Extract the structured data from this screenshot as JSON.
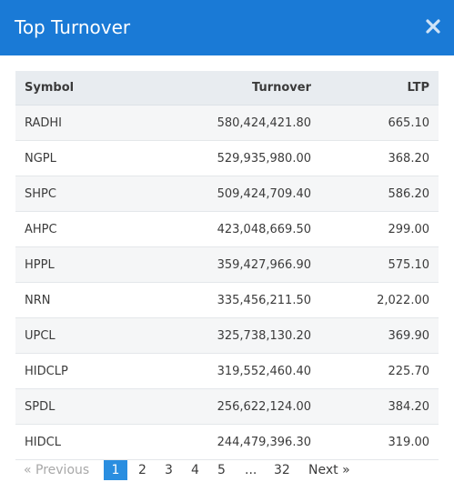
{
  "modal": {
    "title": "Top Turnover",
    "close_icon": "close-icon"
  },
  "table": {
    "headers": {
      "symbol": "Symbol",
      "turnover": "Turnover",
      "ltp": "LTP"
    },
    "rows": [
      {
        "symbol": "RADHI",
        "turnover": "580,424,421.80",
        "ltp": "665.10"
      },
      {
        "symbol": "NGPL",
        "turnover": "529,935,980.00",
        "ltp": "368.20"
      },
      {
        "symbol": "SHPC",
        "turnover": "509,424,709.40",
        "ltp": "586.20"
      },
      {
        "symbol": "AHPC",
        "turnover": "423,048,669.50",
        "ltp": "299.00"
      },
      {
        "symbol": "HPPL",
        "turnover": "359,427,966.90",
        "ltp": "575.10"
      },
      {
        "symbol": "NRN",
        "turnover": "335,456,211.50",
        "ltp": "2,022.00"
      },
      {
        "symbol": "UPCL",
        "turnover": "325,738,130.20",
        "ltp": "369.90"
      },
      {
        "symbol": "HIDCLP",
        "turnover": "319,552,460.40",
        "ltp": "225.70"
      },
      {
        "symbol": "SPDL",
        "turnover": "256,622,124.00",
        "ltp": "384.20"
      },
      {
        "symbol": "HIDCL",
        "turnover": "244,479,396.30",
        "ltp": "319.00"
      }
    ]
  },
  "pagination": {
    "previous": "«  Previous",
    "pages": [
      "1",
      "2",
      "3",
      "4",
      "5"
    ],
    "ellipsis": "...",
    "last": "32",
    "next": "Next  »",
    "current_page": "1"
  },
  "colors": {
    "header_bg": "#1a7ad6",
    "active_page_bg": "#2a8ee0",
    "table_header_bg": "#e8ecf0"
  }
}
